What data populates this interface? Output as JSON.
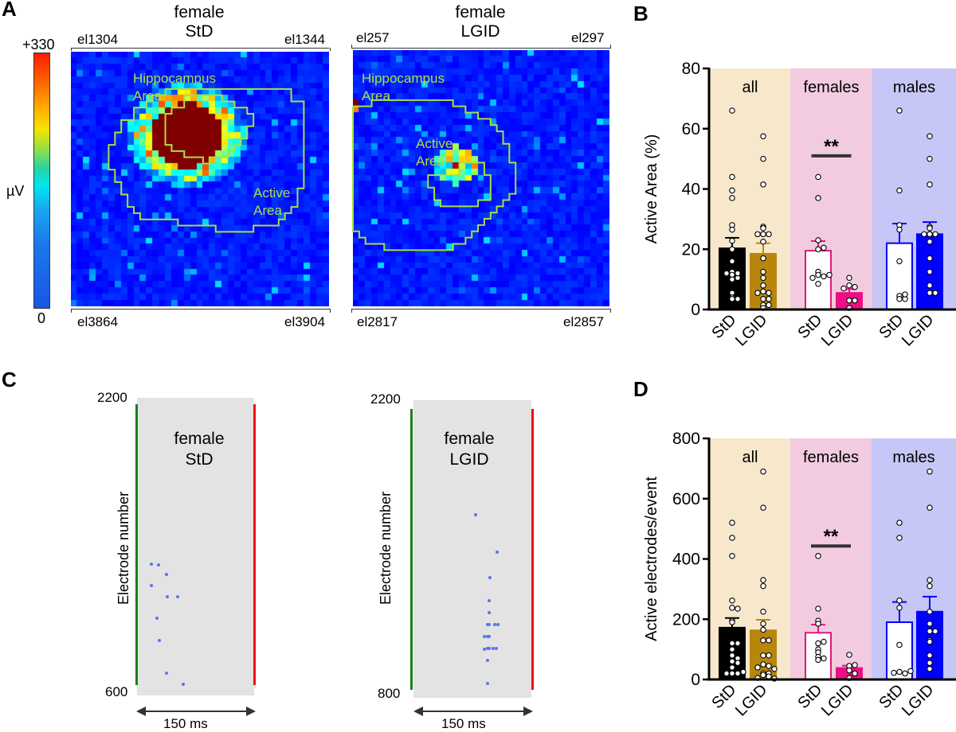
{
  "panels": {
    "A": {
      "letter": "A",
      "colorbar": {
        "max_label": "+330",
        "min_label": "0",
        "unit_label": "µV",
        "range": [
          0,
          330
        ],
        "colormap": "jet"
      },
      "maps": [
        {
          "title_line1": "female",
          "title_line2": "StD",
          "top_left": "el1304",
          "top_right": "el1344",
          "bottom_left": "el3864",
          "bottom_right": "el3904",
          "region_labels": [
            "Hippocampus",
            "Area",
            "Active",
            "Area"
          ]
        },
        {
          "title_line1": "female",
          "title_line2": "LGID",
          "top_left": "el257",
          "top_right": "el297",
          "bottom_left": "el2817",
          "bottom_right": "el2857",
          "region_labels": [
            "Hippocampus",
            "Area",
            "Active",
            "Area"
          ]
        }
      ],
      "contour_color": "#a8e040"
    },
    "B": {
      "letter": "B"
    },
    "C": {
      "letter": "C",
      "rasters": [
        {
          "title_line1": "female",
          "title_line2": "StD",
          "ylabel": "Electrode number",
          "y_top": "2200",
          "y_bottom": "600",
          "scale_label": "150 ms"
        },
        {
          "title_line1": "female",
          "title_line2": "LGID",
          "ylabel": "Electrode number",
          "y_top": "2200",
          "y_bottom": "800",
          "scale_label": "150 ms"
        }
      ]
    },
    "D": {
      "letter": "D"
    }
  },
  "chart_data": [
    {
      "id": "B",
      "type": "bar",
      "ylabel": "Active Area (%)",
      "ylim": [
        0,
        80
      ],
      "yticks": [
        "0",
        "20",
        "40",
        "60",
        "80"
      ],
      "groups": [
        {
          "label": "all",
          "bg": "#f7e8cc"
        },
        {
          "label": "females",
          "bg": "#f2cbe0"
        },
        {
          "label": "males",
          "bg": "#c6c6f7"
        }
      ],
      "categories": [
        "StD",
        "LGID",
        "StD",
        "LGID",
        "StD",
        "LGID"
      ],
      "series": [
        {
          "group": "all",
          "name": "StD",
          "value": 20.3,
          "sem": 3.5,
          "fill": "#000000",
          "stroke": "#000000",
          "error_color": "#000000",
          "points": [
            66,
            44,
            39.5,
            37,
            28,
            26.5,
            22.8,
            20,
            16,
            12.5,
            11.5,
            10.5,
            10,
            12,
            5.5,
            4,
            3.5,
            3.5,
            12
          ]
        },
        {
          "group": "all",
          "name": "LGID",
          "value": 18.5,
          "sem": 3.5,
          "fill": "#b8860b",
          "stroke": "#b8860b",
          "error_color": "#b8860b",
          "points": [
            57.5,
            50,
            41.5,
            27.5,
            27,
            25,
            25,
            25,
            22.5,
            17,
            12.5,
            10.5,
            8,
            6,
            5.5,
            5.5,
            3.5,
            3.5,
            1.5,
            1.5,
            0.5
          ]
        },
        {
          "group": "females",
          "name": "StD",
          "value": 19.5,
          "sem": 3.2,
          "fill": "#ffffff",
          "stroke": "#e0177e",
          "error_color": "#e0177e",
          "points": [
            44,
            37,
            23,
            20,
            20.5,
            12.5,
            11.5,
            11,
            10.5,
            11.5,
            8.5
          ]
        },
        {
          "group": "females",
          "name": "LGID",
          "value": 5.5,
          "sem": 1.3,
          "fill": "#ec0f84",
          "stroke": "#ec0f84",
          "error_color": "#ec0f84",
          "points": [
            10.5,
            8,
            7.5,
            7,
            3,
            3,
            0.5
          ]
        },
        {
          "group": "males",
          "name": "StD",
          "value": 22,
          "sem": 6.5,
          "fill": "#ffffff",
          "stroke": "#0000ff",
          "error_color": "#0000ff",
          "points": [
            66,
            39.5,
            28,
            26.5,
            16,
            4.5,
            3.5,
            3.5,
            5
          ]
        },
        {
          "group": "males",
          "name": "LGID",
          "value": 25,
          "sem": 4,
          "fill": "#0000ff",
          "stroke": "#0000ff",
          "error_color": "#0000ff",
          "points": [
            57.5,
            50,
            41.5,
            27.5,
            27,
            25,
            25,
            25,
            22.5,
            17,
            12.5,
            8,
            5.5,
            5.5
          ]
        }
      ],
      "significance": {
        "group": "females",
        "label": "**",
        "y": 51
      }
    },
    {
      "id": "D",
      "type": "bar",
      "ylabel": "Active electrodes/event",
      "ylim": [
        0,
        800
      ],
      "yticks": [
        "0",
        "200",
        "400",
        "600",
        "800"
      ],
      "groups": [
        {
          "label": "all",
          "bg": "#f7e8cc"
        },
        {
          "label": "females",
          "bg": "#f2cbe0"
        },
        {
          "label": "males",
          "bg": "#c6c6f7"
        }
      ],
      "categories": [
        "StD",
        "LGID",
        "StD",
        "LGID",
        "StD",
        "LGID"
      ],
      "series": [
        {
          "group": "all",
          "name": "StD",
          "value": 172,
          "sem": 32,
          "fill": "#000000",
          "stroke": "#000000",
          "error_color": "#000000",
          "points": [
            520,
            470,
            410,
            262,
            238,
            235,
            195,
            190,
            120,
            120,
            100,
            80,
            70,
            60,
            55,
            40,
            20,
            20,
            20,
            25
          ]
        },
        {
          "group": "all",
          "name": "LGID",
          "value": 163,
          "sem": 35,
          "fill": "#b8860b",
          "stroke": "#b8860b",
          "error_color": "#b8860b",
          "points": [
            690,
            570,
            330,
            310,
            225,
            185,
            165,
            130,
            130,
            80,
            80,
            50,
            45,
            40,
            35,
            20,
            20,
            15,
            10,
            5,
            3
          ]
        },
        {
          "group": "females",
          "name": "StD",
          "value": 155,
          "sem": 27,
          "fill": "#ffffff",
          "stroke": "#e0177e",
          "error_color": "#e0177e",
          "points": [
            410,
            235,
            195,
            185,
            120,
            125,
            100,
            90,
            75,
            70,
            65
          ]
        },
        {
          "group": "females",
          "name": "LGID",
          "value": 38,
          "sem": 8,
          "fill": "#ec0f84",
          "stroke": "#ec0f84",
          "error_color": "#ec0f84",
          "points": [
            82,
            45,
            48,
            30,
            20,
            5
          ]
        },
        {
          "group": "males",
          "name": "StD",
          "value": 190,
          "sem": 67,
          "fill": "#ffffff",
          "stroke": "#0000ff",
          "error_color": "#0000ff",
          "points": [
            520,
            470,
            262,
            238,
            115,
            25,
            20,
            22,
            28
          ]
        },
        {
          "group": "males",
          "name": "LGID",
          "value": 225,
          "sem": 50,
          "fill": "#0000ff",
          "stroke": "#0000ff",
          "error_color": "#0000ff",
          "points": [
            690,
            570,
            330,
            310,
            225,
            185,
            160,
            160,
            130,
            125,
            80,
            55,
            35
          ]
        }
      ],
      "significance": {
        "group": "females",
        "label": "**",
        "y": 443
      }
    }
  ]
}
